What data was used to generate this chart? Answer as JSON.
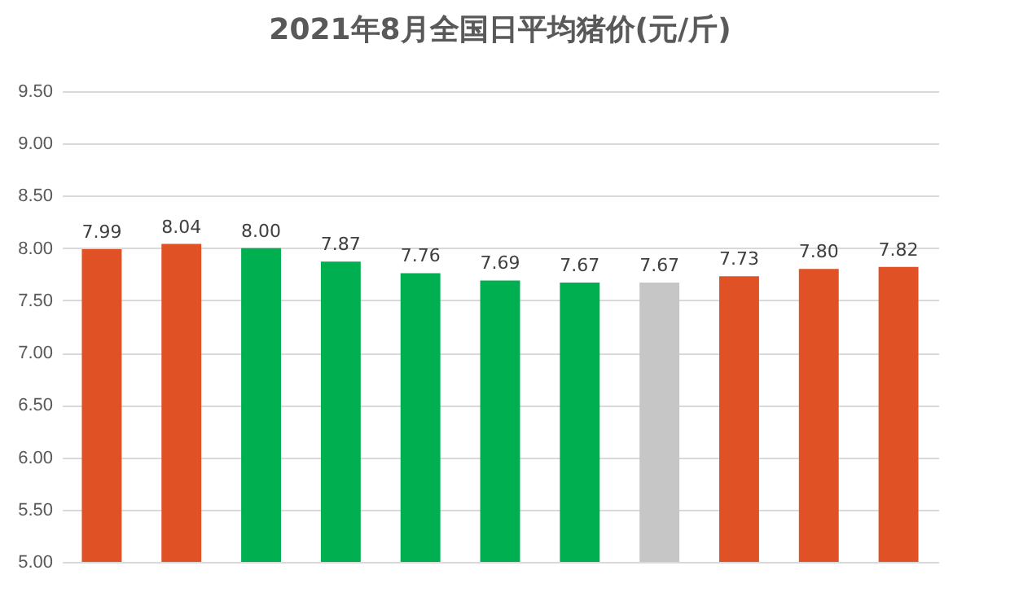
{
  "chart_data": {
    "type": "bar",
    "title": "2021年8月全国日平均猪价(元/斤)",
    "categories": [
      null,
      null,
      null,
      null,
      null,
      null,
      null,
      null,
      null,
      null,
      null
    ],
    "values": [
      7.99,
      8.04,
      8.0,
      7.87,
      7.76,
      7.69,
      7.67,
      7.67,
      7.73,
      7.8,
      7.82
    ],
    "value_labels": [
      "7.99",
      "8.04",
      "8.00",
      "7.87",
      "7.76",
      "7.69",
      "7.67",
      "7.67",
      "7.73",
      "7.80",
      "7.82"
    ],
    "colors": [
      "#e05225",
      "#e05225",
      "#00b050",
      "#00b050",
      "#00b050",
      "#00b050",
      "#00b050",
      "#c6c6c6",
      "#e05225",
      "#e05225",
      "#e05225"
    ],
    "ylim": [
      5,
      9.5
    ],
    "yticks": [
      {
        "value": 5,
        "label": "5.00"
      },
      {
        "value": 5.5,
        "label": "5.50"
      },
      {
        "value": 6,
        "label": "6.00"
      },
      {
        "value": 6.5,
        "label": "6.50"
      },
      {
        "value": 7,
        "label": "7.00"
      },
      {
        "value": 7.5,
        "label": "7.50"
      },
      {
        "value": 8,
        "label": "8.00"
      },
      {
        "value": 8.5,
        "label": "8.50"
      },
      {
        "value": 9,
        "label": "9.00"
      },
      {
        "value": 9.5,
        "label": "9.50"
      }
    ],
    "grid": "y",
    "tick_labels": "y"
  }
}
